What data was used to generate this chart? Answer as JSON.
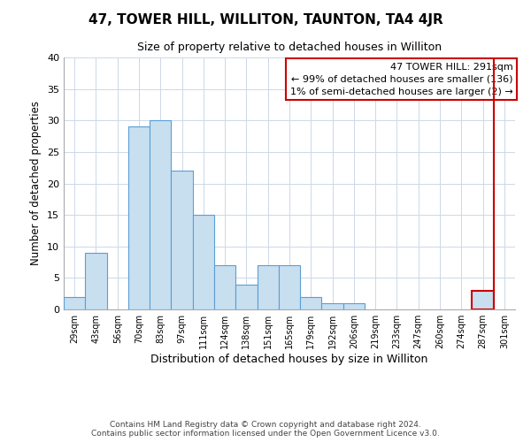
{
  "title": "47, TOWER HILL, WILLITON, TAUNTON, TA4 4JR",
  "subtitle": "Size of property relative to detached houses in Williton",
  "xlabel": "Distribution of detached houses by size in Williton",
  "ylabel": "Number of detached properties",
  "bin_labels": [
    "29sqm",
    "43sqm",
    "56sqm",
    "70sqm",
    "83sqm",
    "97sqm",
    "111sqm",
    "124sqm",
    "138sqm",
    "151sqm",
    "165sqm",
    "179sqm",
    "192sqm",
    "206sqm",
    "219sqm",
    "233sqm",
    "247sqm",
    "260sqm",
    "274sqm",
    "287sqm",
    "301sqm"
  ],
  "bar_values": [
    2,
    9,
    0,
    29,
    30,
    22,
    15,
    7,
    4,
    7,
    7,
    2,
    1,
    1,
    0,
    0,
    0,
    0,
    0,
    3,
    0
  ],
  "bar_color": "#c8dff0",
  "bar_edge_color": "#5a9fd4",
  "highlight_bar_index": 19,
  "highlight_edge_color": "#cc0000",
  "vertical_line_color": "#cc0000",
  "ylim": [
    0,
    40
  ],
  "yticks": [
    0,
    5,
    10,
    15,
    20,
    25,
    30,
    35,
    40
  ],
  "annotation_title": "47 TOWER HILL: 291sqm",
  "annotation_line1": "← 99% of detached houses are smaller (136)",
  "annotation_line2": "1% of semi-detached houses are larger (2) →",
  "annotation_box_color": "#ffffff",
  "annotation_box_edge_color": "#cc0000",
  "footer_line1": "Contains HM Land Registry data © Crown copyright and database right 2024.",
  "footer_line2": "Contains public sector information licensed under the Open Government Licence v3.0.",
  "background_color": "#ffffff",
  "grid_color": "#ccd8e8"
}
